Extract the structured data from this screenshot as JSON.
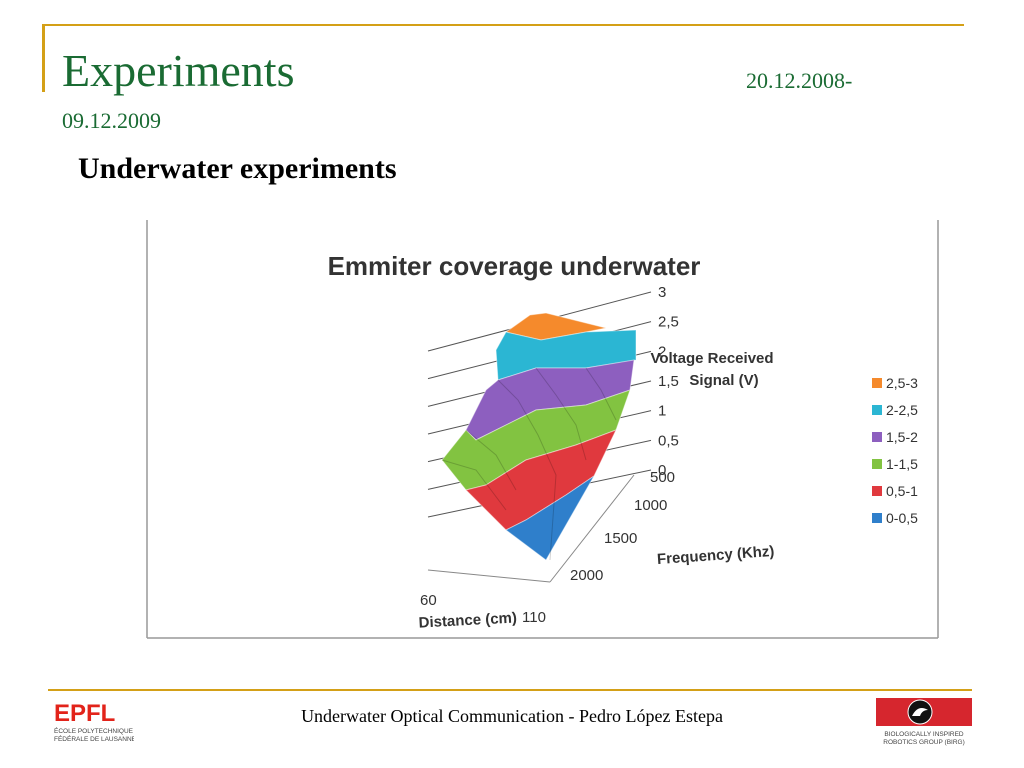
{
  "slide": {
    "title": "Experiments",
    "date_line_1": "20.12.2008-",
    "date_line_2": "09.12.2009",
    "subtitle": "Underwater experiments",
    "footer": "Underwater Optical Communication - Pedro López Estepa",
    "logo_left": {
      "text": "EPFL",
      "line1": "ÉCOLE POLYTECHNIQUE",
      "line2": "FÉDÉRALE DE LAUSANNE"
    },
    "logo_right": {
      "line1": "BIOLOGICALLY INSPIRED",
      "line2": "ROBOTICS GROUP (BIRG)"
    }
  },
  "chart_data": {
    "type": "surface-3d",
    "title": "Emmiter coverage underwater",
    "z_axis": {
      "label": "Voltage Received Signal (V)",
      "range": [
        0,
        3
      ],
      "ticks": [
        "0",
        "0,5",
        "1",
        "1,5",
        "2",
        "2,5",
        "3"
      ]
    },
    "y_axis": {
      "label": "Frequency (Khz)",
      "ticks": [
        "500",
        "1000",
        "1500",
        "2000"
      ]
    },
    "x_axis": {
      "label": "Distance (cm)",
      "ticks": [
        "60",
        "110"
      ]
    },
    "legend": {
      "title": "Voltage Received Signal (V)",
      "placement": "right",
      "entries": [
        {
          "label": "2,5-3",
          "color": "#f58a2c"
        },
        {
          "label": "2-2,5",
          "color": "#2bb6d3"
        },
        {
          "label": "1,5-2",
          "color": "#8d5fbf"
        },
        {
          "label": "1-1,5",
          "color": "#82c341"
        },
        {
          "label": "0,5-1",
          "color": "#e0393e"
        },
        {
          "label": "0-0,5",
          "color": "#2f7fcb"
        }
      ]
    },
    "surface_bands": [
      "2,5-3",
      "2-2,5",
      "1,5-2",
      "1-1,5",
      "0,5-1",
      "0-0,5"
    ]
  }
}
